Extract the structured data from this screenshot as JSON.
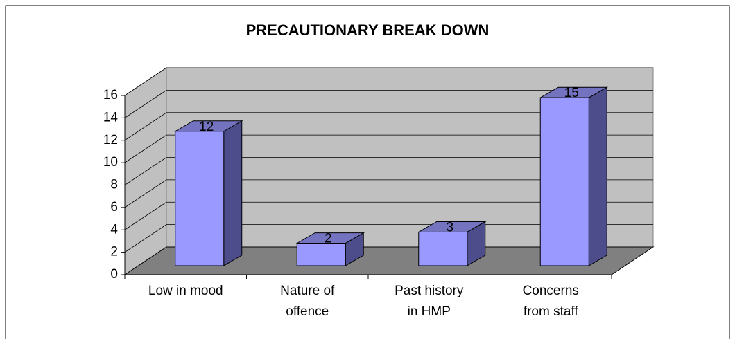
{
  "chart_data": {
    "type": "bar3d",
    "title": "PRECAUTIONARY BREAK DOWN",
    "categories": [
      [
        "Low in mood"
      ],
      [
        "Nature of",
        "offence"
      ],
      [
        "Past history",
        "in HMP"
      ],
      [
        "Concerns",
        "from staff"
      ]
    ],
    "values": [
      12,
      2,
      3,
      15
    ],
    "color": "#9999ff",
    "ylim": [
      0,
      16
    ],
    "yticks": [
      0,
      2,
      4,
      6,
      8,
      10,
      12,
      14,
      16
    ],
    "grid": true
  }
}
